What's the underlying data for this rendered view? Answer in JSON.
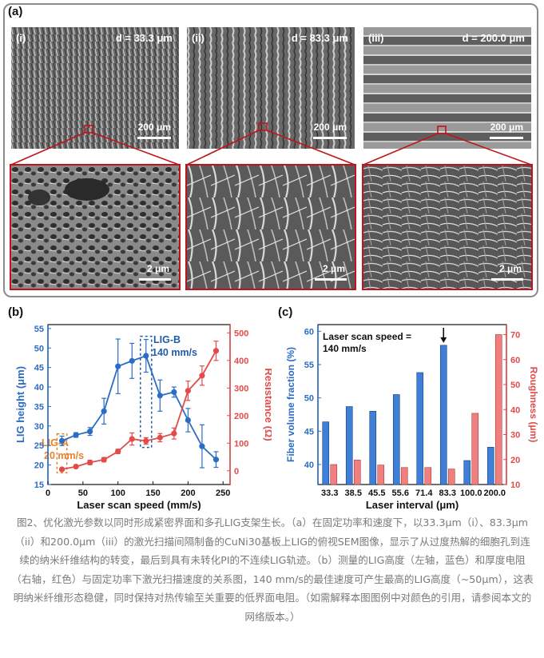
{
  "panel_a": {
    "label": "(a)",
    "top_images": [
      {
        "roman": "(i)",
        "spacing": "d = 33.3 μm",
        "scale": "200 μm",
        "texture": "pores"
      },
      {
        "roman": "(ii)",
        "spacing": "d = 83.3 μm",
        "scale": "200 μm",
        "texture": "wavy"
      },
      {
        "roman": "(iii)",
        "spacing": "d = 200.0 μm",
        "scale": "200 μm",
        "texture": "tracks"
      }
    ],
    "zoom_images": [
      {
        "scale": "2 μm",
        "texture": "porous"
      },
      {
        "scale": "2 μm",
        "texture": "fibrous"
      },
      {
        "scale": "2 μm",
        "texture": "fibrous-dense"
      }
    ]
  },
  "panel_b": {
    "label": "(b)",
    "annotation_a": "LIG-A",
    "annotation_a_speed": "20 mm/s",
    "annotation_b": "LIG-B",
    "annotation_b_speed": "140 mm/s"
  },
  "panel_c": {
    "label": "(c)",
    "note_line1": "Laser scan speed =",
    "note_line2": "140 mm/s"
  },
  "colors": {
    "blue": "#2b6cc4",
    "red": "#e34b4b",
    "bar_blue": "#3f7fd8",
    "bar_red": "#f08080",
    "orange": "#e8822a"
  },
  "chart_data": [
    {
      "type": "line",
      "title": "",
      "xlabel": "Laser scan speed (mm/s)",
      "ylabel": "LIG height (μm)",
      "y2label": "Resistance (Ω)",
      "xlim": [
        0,
        260
      ],
      "ylim": [
        15,
        56
      ],
      "y2lim": [
        -50,
        530
      ],
      "xticks": [
        0,
        50,
        100,
        150,
        200,
        250
      ],
      "yticks": [
        15,
        20,
        25,
        30,
        35,
        40,
        45,
        50,
        55
      ],
      "y2ticks": [
        0,
        100,
        200,
        300,
        400,
        500
      ],
      "series": [
        {
          "axis": "left",
          "color": "blue",
          "x": [
            20,
            40,
            60,
            80,
            100,
            120,
            140,
            160,
            180,
            200,
            220,
            240
          ],
          "y": [
            26.2,
            27.7,
            28.6,
            33.8,
            45.3,
            46.7,
            48.0,
            37.8,
            38.7,
            31.5,
            24.8,
            21.4
          ],
          "err": [
            1.2,
            0.6,
            1.0,
            3.3,
            7.0,
            4.5,
            4.2,
            4.0,
            1.3,
            3.0,
            5.5,
            2.0
          ]
        },
        {
          "axis": "right",
          "color": "red",
          "x": [
            20,
            40,
            60,
            80,
            100,
            120,
            140,
            160,
            180,
            200,
            220,
            240
          ],
          "y": [
            5,
            15,
            30,
            40,
            70,
            115,
            108,
            120,
            135,
            290,
            345,
            435
          ],
          "err": [
            5,
            5,
            8,
            8,
            8,
            22,
            12,
            15,
            20,
            35,
            35,
            35
          ]
        }
      ]
    },
    {
      "type": "bar",
      "title": "",
      "xlabel": "Laser interval (μm)",
      "ylabel": "Fiber volume fraction (%)",
      "y2label": "Roughness (μm)",
      "categories": [
        "33.3",
        "38.5",
        "45.5",
        "55.6",
        "71.4",
        "83.3",
        "100.0",
        "200.0"
      ],
      "ylim": [
        37,
        61
      ],
      "y2lim": [
        10,
        74
      ],
      "yticks": [
        40,
        45,
        50,
        55,
        60
      ],
      "y2ticks": [
        10,
        20,
        30,
        40,
        50,
        60,
        70
      ],
      "series": [
        {
          "axis": "left",
          "color": "bar_blue",
          "values": [
            46.4,
            48.7,
            48.0,
            50.5,
            53.8,
            57.9,
            40.6,
            42.6
          ]
        },
        {
          "axis": "right",
          "color": "bar_red",
          "values": [
            18.0,
            19.8,
            17.8,
            16.8,
            16.8,
            16.2,
            38.5,
            70.0
          ]
        }
      ]
    }
  ],
  "caption": "图2、优化激光参数以同时形成紧密界面和多孔LIG支架生长。（a）在固定功率和速度下，以33.3μm（i）、83.3μm（ii）和200.0μm（iii）的激光扫描间隔制备的CuNi30基板上LIG的俯视SEM图像，显示了从过度热解的细胞孔到连续的纳米纤维结构的转变，最后到具有未转化PI的不连续LIG轨迹。（b）测量的LIG高度（左轴，蓝色）和厚度电阻（右轴，红色）与固定功率下激光扫描速度的关系图，140 mm/s的最佳速度可产生最高的LIG高度（~50μm），这表明纳米纤维形态稳健，同时保持对热传输至关重要的低界面电阻。（如需解释本图图例中对颜色的引用，请参阅本文的网络版本。）"
}
